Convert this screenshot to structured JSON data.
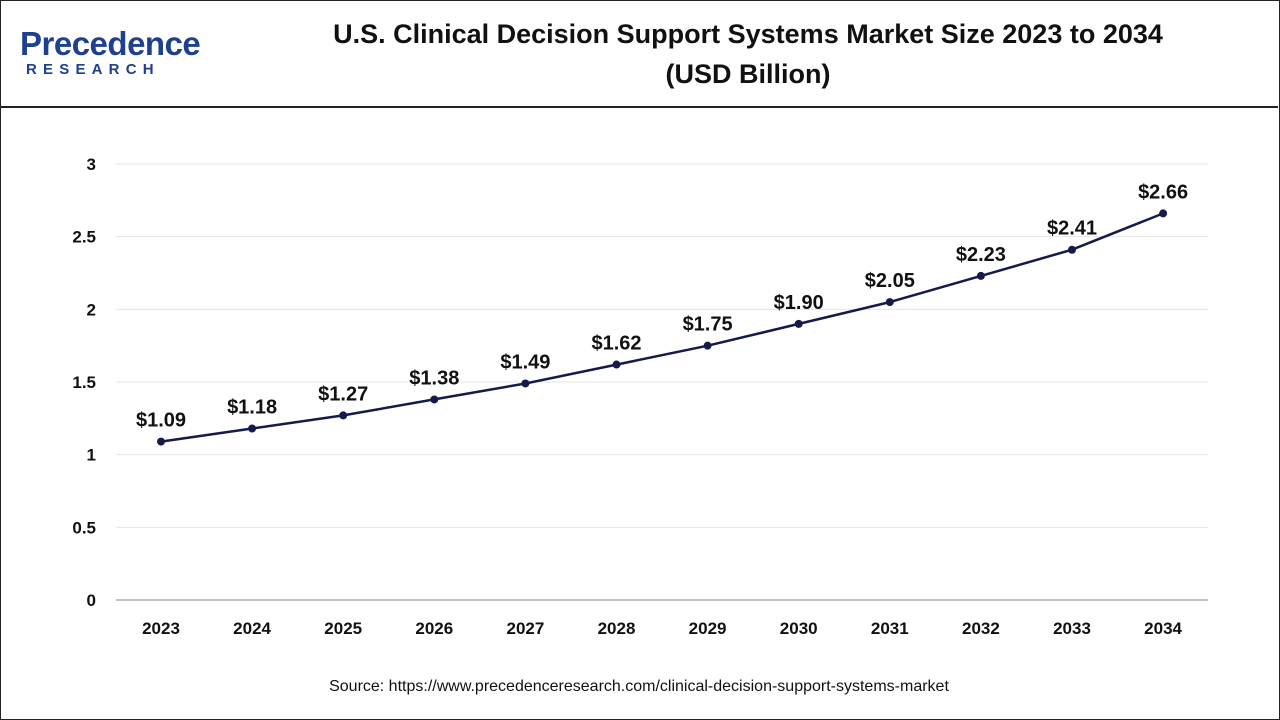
{
  "logo": {
    "top": "Precedence",
    "bottom": "RESEARCH"
  },
  "header": {
    "title_line1": "U.S. Clinical Decision Support Systems Market Size 2023 to 2034",
    "title_line2": "(USD Billion)"
  },
  "chart_data": {
    "type": "line",
    "title": "U.S. Clinical Decision Support Systems Market Size 2023 to 2034 (USD Billion)",
    "xlabel": "",
    "ylabel": "",
    "categories": [
      "2023",
      "2024",
      "2025",
      "2026",
      "2027",
      "2028",
      "2029",
      "2030",
      "2031",
      "2032",
      "2033",
      "2034"
    ],
    "values": [
      1.09,
      1.18,
      1.27,
      1.38,
      1.49,
      1.62,
      1.75,
      1.9,
      2.05,
      2.23,
      2.41,
      2.66
    ],
    "data_labels": [
      "$1.09",
      "$1.18",
      "$1.27",
      "$1.38",
      "$1.49",
      "$1.62",
      "$1.75",
      "$1.90",
      "$2.05",
      "$2.23",
      "$2.41",
      "$2.66"
    ],
    "ylim": [
      0,
      3
    ],
    "yticks": [
      0,
      0.5,
      1,
      1.5,
      2,
      2.5,
      3
    ],
    "ytick_labels": [
      "0",
      "0.5",
      "1",
      "1.5",
      "2",
      "2.5",
      "3"
    ],
    "grid": true,
    "line_color": "#141a4a"
  },
  "source": "Source: https://www.precedenceresearch.com/clinical-decision-support-systems-market"
}
